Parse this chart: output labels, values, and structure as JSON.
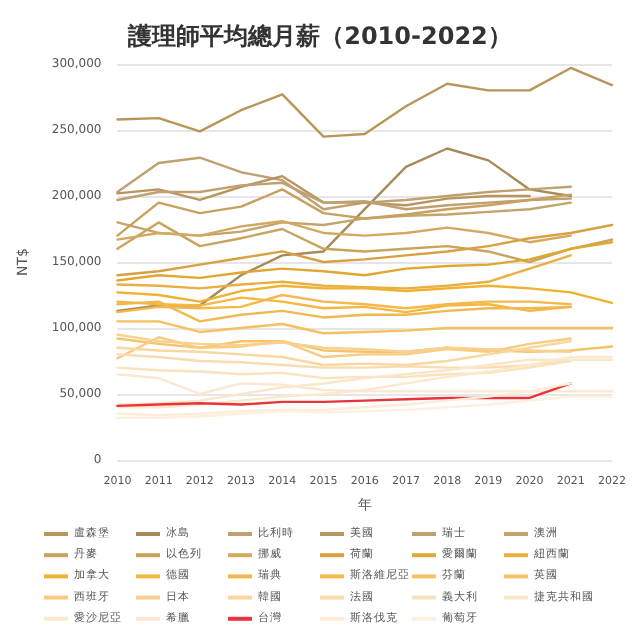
{
  "chart_data": {
    "type": "line",
    "title": "護理師平均總月薪（2010-2022）",
    "xlabel": "年",
    "ylabel": "NT$",
    "categories": [
      "2010",
      "2011",
      "2012",
      "2013",
      "2014",
      "2015",
      "2016",
      "2017",
      "2018",
      "2019",
      "2020",
      "2021",
      "2022"
    ],
    "ylim": [
      0,
      300000
    ],
    "yticks": [
      {
        "value": 0,
        "label": "0"
      },
      {
        "value": 50000,
        "label": "50,000"
      },
      {
        "value": 100000,
        "label": "100,000"
      },
      {
        "value": 150000,
        "label": "150,000"
      },
      {
        "value": 200000,
        "label": "200,000"
      },
      {
        "value": 250000,
        "label": "250,000"
      },
      {
        "value": 300000,
        "label": "300,000"
      }
    ],
    "grid": "y",
    "legend": "bottom",
    "line_style": "solid",
    "series": [
      {
        "name": "盧森堡",
        "color": "#b8965a",
        "values": [
          258000,
          259000,
          249000,
          265000,
          277000,
          245000,
          247000,
          268000,
          285000,
          280000,
          280000,
          297000,
          284000
        ]
      },
      {
        "name": "冰島",
        "color": "#a88a5a",
        "values": [
          113000,
          117000,
          117000,
          140000,
          155000,
          158000,
          190000,
          222000,
          236000,
          227000,
          205000,
          200000,
          null
        ]
      },
      {
        "name": "比利時",
        "color": "#c0a070",
        "values": [
          203000,
          225000,
          229000,
          218000,
          212000,
          190000,
          195000,
          197000,
          200000,
          203000,
          205000,
          207000,
          null
        ]
      },
      {
        "name": "美國",
        "color": "#b8955f",
        "values": [
          202000,
          205000,
          197000,
          207000,
          215000,
          195000,
          195000,
          193000,
          198000,
          200000,
          200000,
          null,
          null
        ]
      },
      {
        "name": "瑞士",
        "color": "#bfa070",
        "values": [
          197000,
          203000,
          203000,
          208000,
          210000,
          195000,
          196000,
          190000,
          193000,
          195000,
          197000,
          198000,
          null
        ]
      },
      {
        "name": "澳洲",
        "color": "#c4a46a",
        "values": [
          180000,
          172000,
          170000,
          173000,
          180000,
          178000,
          183000,
          185000,
          186000,
          188000,
          190000,
          195000,
          null
        ]
      },
      {
        "name": "丹麥",
        "color": "#c8a060",
        "values": [
          170000,
          195000,
          187000,
          192000,
          205000,
          187000,
          183000,
          186000,
          190000,
          193000,
          197000,
          201000,
          null
        ]
      },
      {
        "name": "以色列",
        "color": "#c8a45c",
        "values": [
          160000,
          180000,
          162000,
          168000,
          175000,
          160000,
          158000,
          160000,
          162000,
          158000,
          150000,
          160000,
          167000
        ]
      },
      {
        "name": "挪威",
        "color": "#d4a860",
        "values": [
          167000,
          172000,
          170000,
          177000,
          181000,
          172000,
          170000,
          172000,
          176000,
          172000,
          165000,
          170000,
          null
        ]
      },
      {
        "name": "荷蘭",
        "color": "#d8a040",
        "values": [
          140000,
          143000,
          148000,
          153000,
          158000,
          150000,
          152000,
          155000,
          158000,
          162000,
          168000,
          172000,
          178000
        ]
      },
      {
        "name": "愛爾蘭",
        "color": "#e0a830",
        "values": [
          136000,
          140000,
          138000,
          142000,
          145000,
          143000,
          140000,
          145000,
          147000,
          148000,
          152000,
          160000,
          165000
        ]
      },
      {
        "name": "紐西蘭",
        "color": "#e8b040",
        "values": [
          133000,
          132000,
          130000,
          133000,
          135000,
          132000,
          131000,
          130000,
          132000,
          135000,
          145000,
          155000,
          null
        ]
      },
      {
        "name": "加拿大",
        "color": "#f0b030",
        "values": [
          127000,
          125000,
          120000,
          128000,
          132000,
          130000,
          130000,
          128000,
          130000,
          132000,
          130000,
          127000,
          119000
        ]
      },
      {
        "name": "德國",
        "color": "#f4b840",
        "values": [
          120000,
          118000,
          117000,
          123000,
          120000,
          115000,
          116000,
          112000,
          117000,
          118000,
          113000,
          116000,
          null
        ]
      },
      {
        "name": "瑞典",
        "color": "#f0b850",
        "values": [
          118000,
          120000,
          105000,
          110000,
          113000,
          108000,
          110000,
          110000,
          113000,
          115000,
          115000,
          116000,
          null
        ]
      },
      {
        "name": "斯洛維尼亞",
        "color": "#f5b84a",
        "values": [
          112000,
          116000,
          115000,
          116000,
          125000,
          120000,
          118000,
          115000,
          118000,
          120000,
          120000,
          118000,
          null
        ]
      },
      {
        "name": "芬蘭",
        "color": "#f5c060",
        "values": [
          105000,
          105000,
          97000,
          100000,
          103000,
          96000,
          97000,
          98000,
          100000,
          100000,
          100000,
          100000,
          100000
        ]
      },
      {
        "name": "英國",
        "color": "#f5c46a",
        "values": [
          92000,
          88000,
          85000,
          90000,
          90000,
          83000,
          82000,
          82000,
          85000,
          83000,
          82000,
          83000,
          86000
        ]
      },
      {
        "name": "西班牙",
        "color": "#f8cc80",
        "values": [
          77000,
          93000,
          85000,
          86000,
          90000,
          78000,
          80000,
          80000,
          84000,
          82000,
          88000,
          92000,
          null
        ]
      },
      {
        "name": "日本",
        "color": "#f8d090",
        "values": [
          95000,
          90000,
          88000,
          87000,
          89000,
          85000,
          84000,
          82000,
          85000,
          84000,
          83000,
          82000,
          null
        ]
      },
      {
        "name": "韓國",
        "color": "#f8d8a0",
        "values": [
          85000,
          83000,
          82000,
          80000,
          78000,
          72000,
          73000,
          72000,
          75000,
          80000,
          85000,
          90000,
          null
        ]
      },
      {
        "name": "法國",
        "color": "#f8dcb0",
        "values": [
          80000,
          78000,
          75000,
          74000,
          72000,
          70000,
          70000,
          71000,
          70000,
          70000,
          72000,
          75000,
          null
        ]
      },
      {
        "name": "義大利",
        "color": "#fae2bc",
        "values": [
          70000,
          68000,
          67000,
          65000,
          66000,
          62000,
          63000,
          63000,
          65000,
          66000,
          70000,
          75000,
          null
        ]
      },
      {
        "name": "捷克共和國",
        "color": "#fae6c8",
        "values": [
          42000,
          43000,
          45000,
          50000,
          55000,
          58000,
          62000,
          65000,
          68000,
          72000,
          76000,
          76000,
          76000
        ]
      },
      {
        "name": "愛沙尼亞",
        "color": "#fce8cc",
        "values": [
          40000,
          40000,
          42000,
          45000,
          48000,
          50000,
          53000,
          58000,
          63000,
          67000,
          72000,
          78000,
          78000
        ]
      },
      {
        "name": "希臘",
        "color": "#fce8d0",
        "values": [
          65000,
          62000,
          50000,
          58000,
          57000,
          53000,
          52000,
          52000,
          52000,
          52000,
          52000,
          52000,
          52000
        ]
      },
      {
        "name": "台灣",
        "color": "#e8343a",
        "values": [
          41000,
          42000,
          43000,
          42000,
          44000,
          44000,
          45000,
          46000,
          47000,
          47000,
          47000,
          58000,
          null
        ]
      },
      {
        "name": "斯洛伐克",
        "color": "#fcecd8",
        "values": [
          35000,
          34000,
          35000,
          37000,
          38000,
          38000,
          40000,
          42000,
          45000,
          48000,
          52000,
          58000,
          null
        ]
      },
      {
        "name": "葡萄牙",
        "color": "#fdf0e0",
        "values": [
          32000,
          32000,
          33000,
          35000,
          37000,
          36000,
          37000,
          38000,
          40000,
          42000,
          45000,
          48000,
          48000
        ]
      }
    ]
  }
}
